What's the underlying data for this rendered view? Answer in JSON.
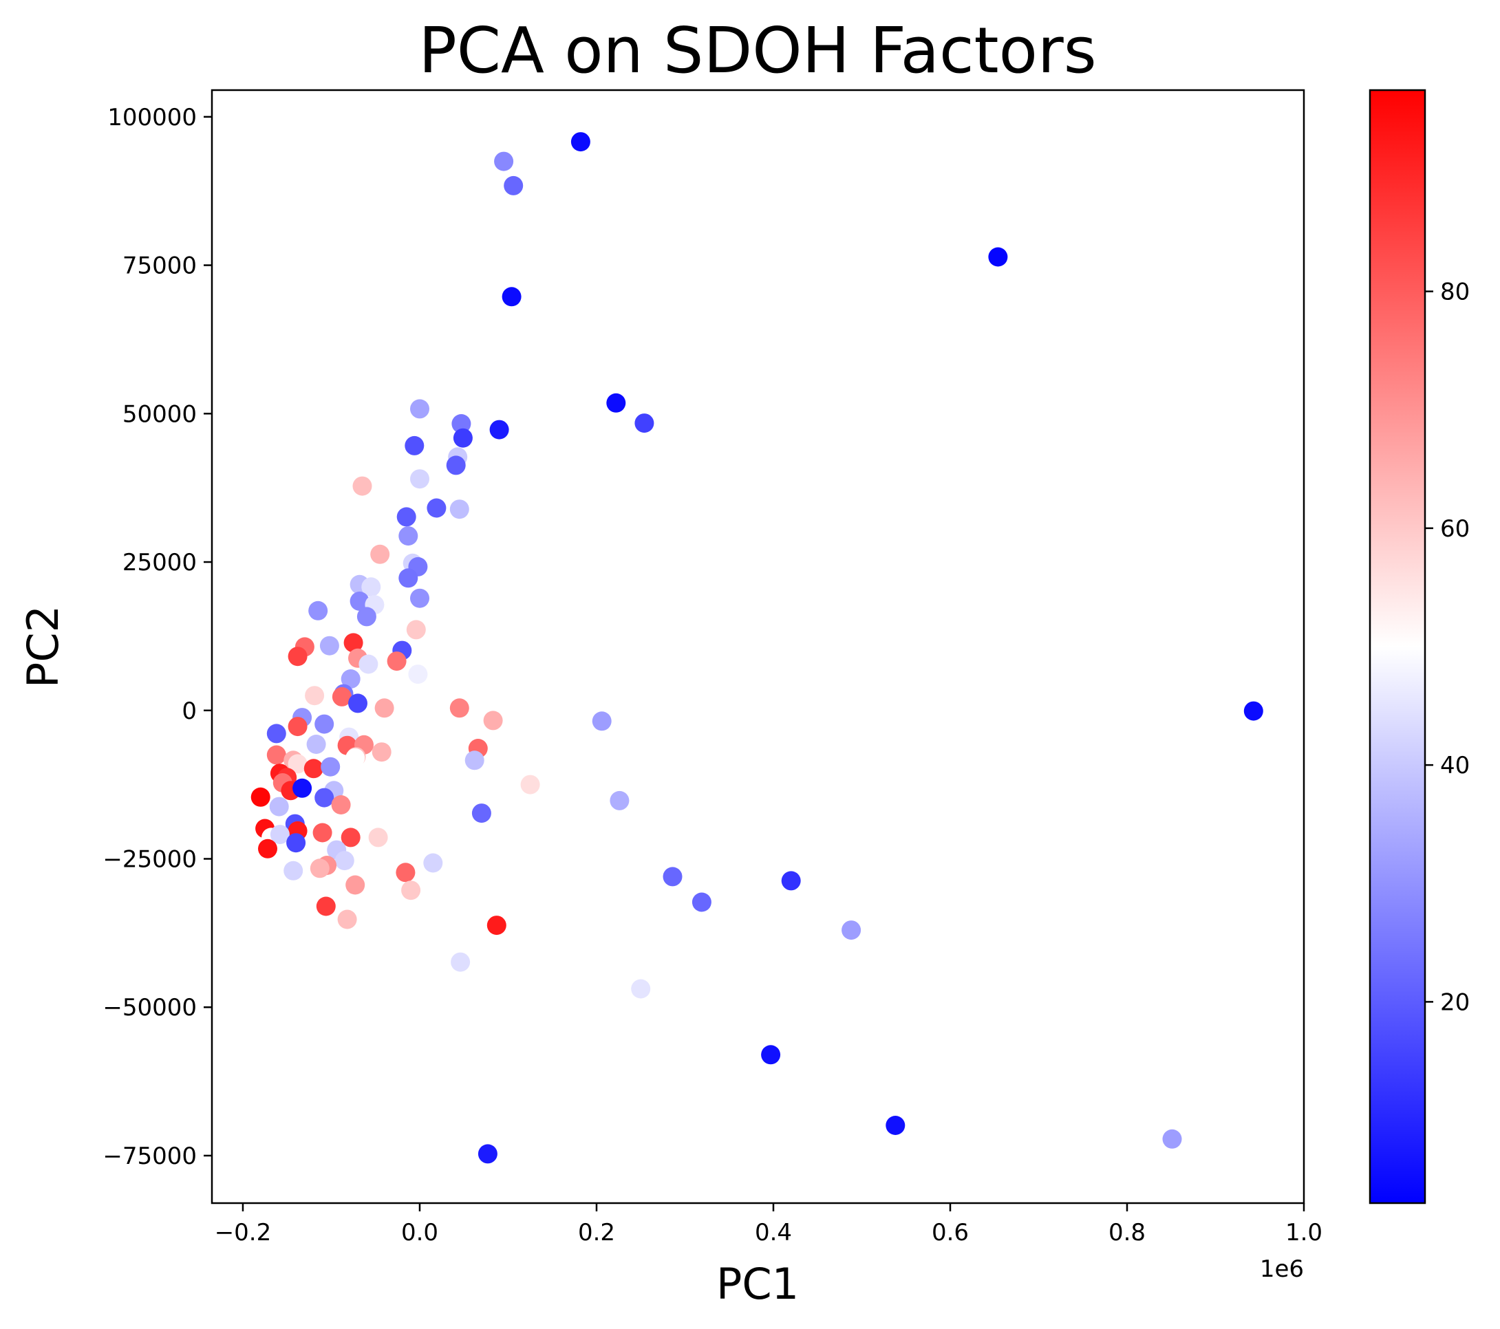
{
  "chart_data": {
    "type": "scatter",
    "title": "PCA on SDOH Factors",
    "xlabel": "PC1",
    "ylabel": "PC2",
    "x_offset_label": "1e6",
    "x_scale": 1000000,
    "xlim": [
      -0.235,
      1.0
    ],
    "ylim": [
      -83000,
      104500
    ],
    "x_ticks": [
      -0.2,
      0.0,
      0.2,
      0.4,
      0.6,
      0.8,
      1.0
    ],
    "x_tick_labels": [
      "−0.2",
      "0.0",
      "0.2",
      "0.4",
      "0.6",
      "0.8",
      "1.0"
    ],
    "y_ticks": [
      -75000,
      -50000,
      -25000,
      0,
      25000,
      50000,
      75000,
      100000
    ],
    "y_tick_labels": [
      "−75000",
      "−50000",
      "−25000",
      "0",
      "25000",
      "50000",
      "75000",
      "100000"
    ],
    "grid": false,
    "colormap": "bwr",
    "color_range": [
      3,
      97
    ],
    "colorbar_ticks": [
      20,
      40,
      60,
      80
    ],
    "colorbar_tick_labels": [
      "20",
      "40",
      "60",
      "80"
    ],
    "points": [
      {
        "x": 0.182,
        "y": 95800,
        "c": 5
      },
      {
        "x": 0.095,
        "y": 92500,
        "c": 28
      },
      {
        "x": 0.106,
        "y": 88400,
        "c": 22
      },
      {
        "x": 0.654,
        "y": 76400,
        "c": 4
      },
      {
        "x": 0.104,
        "y": 69700,
        "c": 5
      },
      {
        "x": 0.222,
        "y": 51800,
        "c": 5
      },
      {
        "x": 0.254,
        "y": 48400,
        "c": 15
      },
      {
        "x": 0.09,
        "y": 47300,
        "c": 8
      },
      {
        "x": 0.0,
        "y": 50800,
        "c": 33
      },
      {
        "x": 0.047,
        "y": 48300,
        "c": 25
      },
      {
        "x": 0.049,
        "y": 45900,
        "c": 14
      },
      {
        "x": -0.006,
        "y": 44600,
        "c": 18
      },
      {
        "x": 0.043,
        "y": 42700,
        "c": 40
      },
      {
        "x": 0.041,
        "y": 41300,
        "c": 20
      },
      {
        "x": 0.0,
        "y": 39000,
        "c": 42
      },
      {
        "x": -0.065,
        "y": 37800,
        "c": 62
      },
      {
        "x": 0.019,
        "y": 34100,
        "c": 20
      },
      {
        "x": 0.045,
        "y": 33900,
        "c": 38
      },
      {
        "x": -0.015,
        "y": 32600,
        "c": 20
      },
      {
        "x": -0.013,
        "y": 29400,
        "c": 30
      },
      {
        "x": -0.045,
        "y": 26300,
        "c": 64
      },
      {
        "x": -0.008,
        "y": 24800,
        "c": 42
      },
      {
        "x": -0.002,
        "y": 24200,
        "c": 25
      },
      {
        "x": -0.013,
        "y": 22300,
        "c": 24
      },
      {
        "x": -0.068,
        "y": 21200,
        "c": 38
      },
      {
        "x": -0.055,
        "y": 20800,
        "c": 44
      },
      {
        "x": -0.068,
        "y": 18400,
        "c": 28
      },
      {
        "x": -0.051,
        "y": 17800,
        "c": 45
      },
      {
        "x": 0.0,
        "y": 18900,
        "c": 30
      },
      {
        "x": -0.115,
        "y": 16800,
        "c": 30
      },
      {
        "x": -0.06,
        "y": 15800,
        "c": 28
      },
      {
        "x": -0.004,
        "y": 13600,
        "c": 60
      },
      {
        "x": -0.075,
        "y": 11400,
        "c": 88
      },
      {
        "x": -0.13,
        "y": 10700,
        "c": 78
      },
      {
        "x": -0.102,
        "y": 10900,
        "c": 35
      },
      {
        "x": -0.02,
        "y": 10100,
        "c": 18
      },
      {
        "x": -0.138,
        "y": 9100,
        "c": 85
      },
      {
        "x": -0.07,
        "y": 8800,
        "c": 70
      },
      {
        "x": -0.026,
        "y": 8300,
        "c": 76
      },
      {
        "x": -0.058,
        "y": 7800,
        "c": 44
      },
      {
        "x": -0.002,
        "y": 6100,
        "c": 47
      },
      {
        "x": -0.078,
        "y": 5300,
        "c": 33
      },
      {
        "x": -0.119,
        "y": 2500,
        "c": 58
      },
      {
        "x": -0.086,
        "y": 2800,
        "c": 25
      },
      {
        "x": -0.088,
        "y": 2300,
        "c": 78
      },
      {
        "x": -0.07,
        "y": 1200,
        "c": 16
      },
      {
        "x": -0.04,
        "y": 400,
        "c": 66
      },
      {
        "x": 0.045,
        "y": 400,
        "c": 73
      },
      {
        "x": -0.133,
        "y": -1200,
        "c": 30
      },
      {
        "x": 0.083,
        "y": -1700,
        "c": 65
      },
      {
        "x": 0.206,
        "y": -1800,
        "c": 32
      },
      {
        "x": 0.943,
        "y": -100,
        "c": 5
      },
      {
        "x": -0.108,
        "y": -2300,
        "c": 28
      },
      {
        "x": -0.138,
        "y": -2700,
        "c": 82
      },
      {
        "x": -0.162,
        "y": -3900,
        "c": 20
      },
      {
        "x": -0.08,
        "y": -4500,
        "c": 45
      },
      {
        "x": -0.117,
        "y": -5700,
        "c": 38
      },
      {
        "x": -0.082,
        "y": -5900,
        "c": 80
      },
      {
        "x": -0.063,
        "y": -5800,
        "c": 72
      },
      {
        "x": 0.066,
        "y": -6400,
        "c": 78
      },
      {
        "x": -0.043,
        "y": -7000,
        "c": 64
      },
      {
        "x": -0.162,
        "y": -7500,
        "c": 76
      },
      {
        "x": -0.143,
        "y": -8400,
        "c": 65
      },
      {
        "x": -0.072,
        "y": -7800,
        "c": 62
      },
      {
        "x": -0.073,
        "y": -8000,
        "c": 50
      },
      {
        "x": 0.062,
        "y": -8400,
        "c": 38
      },
      {
        "x": -0.138,
        "y": -9000,
        "c": 56
      },
      {
        "x": -0.12,
        "y": -9800,
        "c": 88
      },
      {
        "x": -0.101,
        "y": -9500,
        "c": 30
      },
      {
        "x": -0.158,
        "y": -10600,
        "c": 92
      },
      {
        "x": -0.15,
        "y": -11300,
        "c": 88
      },
      {
        "x": -0.155,
        "y": -12200,
        "c": 76
      },
      {
        "x": 0.125,
        "y": -12500,
        "c": 56
      },
      {
        "x": -0.146,
        "y": -13500,
        "c": 90
      },
      {
        "x": -0.133,
        "y": -13100,
        "c": 6
      },
      {
        "x": -0.097,
        "y": -13500,
        "c": 38
      },
      {
        "x": -0.18,
        "y": -14600,
        "c": 96
      },
      {
        "x": -0.108,
        "y": -14700,
        "c": 20
      },
      {
        "x": 0.226,
        "y": -15200,
        "c": 35
      },
      {
        "x": -0.089,
        "y": -15900,
        "c": 72
      },
      {
        "x": -0.159,
        "y": -16200,
        "c": 38
      },
      {
        "x": 0.07,
        "y": -17300,
        "c": 22
      },
      {
        "x": -0.141,
        "y": -19100,
        "c": 18
      },
      {
        "x": -0.175,
        "y": -19900,
        "c": 94
      },
      {
        "x": -0.138,
        "y": -20300,
        "c": 92
      },
      {
        "x": -0.11,
        "y": -20600,
        "c": 80
      },
      {
        "x": -0.047,
        "y": -21400,
        "c": 58
      },
      {
        "x": -0.078,
        "y": -21400,
        "c": 84
      },
      {
        "x": -0.168,
        "y": -21400,
        "c": 50
      },
      {
        "x": -0.158,
        "y": -20900,
        "c": 42
      },
      {
        "x": -0.14,
        "y": -22300,
        "c": 16
      },
      {
        "x": -0.172,
        "y": -23300,
        "c": 94
      },
      {
        "x": -0.094,
        "y": -23500,
        "c": 40
      },
      {
        "x": -0.085,
        "y": -25300,
        "c": 42
      },
      {
        "x": 0.015,
        "y": -25700,
        "c": 42
      },
      {
        "x": -0.105,
        "y": -26100,
        "c": 70
      },
      {
        "x": -0.113,
        "y": -26600,
        "c": 64
      },
      {
        "x": -0.143,
        "y": -27000,
        "c": 42
      },
      {
        "x": -0.016,
        "y": -27300,
        "c": 78
      },
      {
        "x": 0.286,
        "y": -28000,
        "c": 22
      },
      {
        "x": 0.42,
        "y": -28700,
        "c": 12
      },
      {
        "x": -0.073,
        "y": -29400,
        "c": 68
      },
      {
        "x": -0.01,
        "y": -30300,
        "c": 60
      },
      {
        "x": 0.319,
        "y": -32300,
        "c": 22
      },
      {
        "x": -0.106,
        "y": -33000,
        "c": 86
      },
      {
        "x": -0.082,
        "y": -35200,
        "c": 62
      },
      {
        "x": 0.087,
        "y": -36200,
        "c": 92
      },
      {
        "x": 0.488,
        "y": -37000,
        "c": 32
      },
      {
        "x": 0.046,
        "y": -42400,
        "c": 44
      },
      {
        "x": 0.25,
        "y": -46900,
        "c": 45
      },
      {
        "x": 0.397,
        "y": -58000,
        "c": 6
      },
      {
        "x": 0.538,
        "y": -69900,
        "c": 6
      },
      {
        "x": 0.851,
        "y": -72200,
        "c": 32
      },
      {
        "x": 0.077,
        "y": -74700,
        "c": 8
      }
    ]
  }
}
